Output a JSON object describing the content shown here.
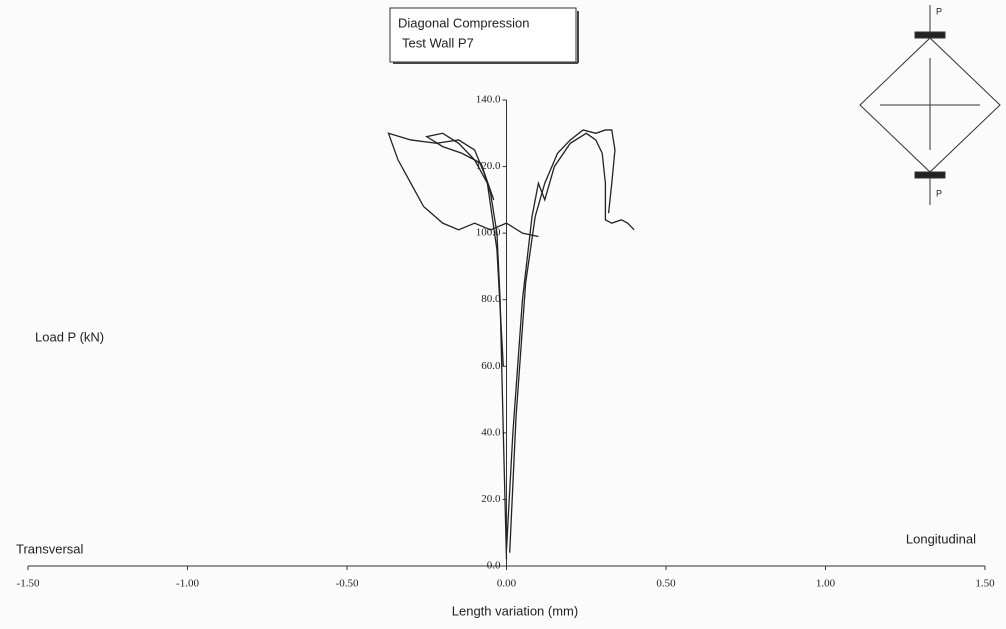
{
  "chart_data": {
    "type": "line",
    "title": "Diagonal Compression",
    "subtitle": "Test  Wall P7",
    "x_label": "Length variation (mm)",
    "y_label": "Load P (kN)",
    "annotations": [
      "Transversal",
      "Longitudinal"
    ],
    "diagram_labels": [
      "P",
      "P"
    ],
    "xlim": [
      -1.5,
      1.5
    ],
    "ylim": [
      0,
      140
    ],
    "xticks": [
      {
        "value": -1.5,
        "label": "-1.50"
      },
      {
        "value": -1.0,
        "label": "-1.00"
      },
      {
        "value": -0.5,
        "label": "-0.50"
      },
      {
        "value": 0,
        "label": "0.00"
      },
      {
        "value": 0.5,
        "label": "0.50"
      },
      {
        "value": 1.0,
        "label": "1.00"
      },
      {
        "value": 1.5,
        "label": "1.50"
      }
    ],
    "yticks": [
      {
        "value": 0,
        "label": "0.0"
      },
      {
        "value": 20,
        "label": "20.0"
      },
      {
        "value": 40,
        "label": "40.0"
      },
      {
        "value": 60,
        "label": "60.0"
      },
      {
        "value": 80,
        "label": "80.0"
      },
      {
        "value": 100,
        "label": "100.0"
      },
      {
        "value": 120,
        "label": "120.0"
      },
      {
        "value": 140,
        "label": "140.0"
      }
    ],
    "series": [
      {
        "color": "#222222",
        "x": [
          0.0,
          -0.01,
          -0.02,
          -0.03,
          -0.05,
          -0.07,
          -0.1,
          -0.15,
          -0.22,
          -0.3,
          -0.37,
          -0.34,
          -0.3,
          -0.26,
          -0.2,
          -0.15,
          -0.1,
          -0.05,
          0.0,
          0.05,
          0.1
        ],
        "values": [
          2,
          40,
          80,
          100,
          112,
          118,
          125,
          128,
          127,
          128,
          130,
          122,
          115,
          108,
          103,
          101,
          103,
          101,
          103,
          100,
          99
        ]
      },
      {
        "color": "#222222",
        "x": [
          -0.01,
          -0.03,
          -0.06,
          -0.1,
          -0.15,
          -0.2,
          -0.25,
          -0.2,
          -0.14,
          -0.08,
          -0.04
        ],
        "values": [
          60,
          95,
          115,
          122,
          127,
          130,
          129,
          126,
          124,
          121,
          110
        ]
      },
      {
        "color": "#222222",
        "x": [
          0.0,
          0.02,
          0.05,
          0.08,
          0.1,
          0.12,
          0.15,
          0.2,
          0.25,
          0.28,
          0.3,
          0.31,
          0.31,
          0.33,
          0.36,
          0.38,
          0.4,
          0.38
        ],
        "values": [
          5,
          40,
          80,
          105,
          115,
          110,
          120,
          127,
          130,
          128,
          124,
          115,
          104,
          103,
          104,
          103,
          101,
          103
        ]
      },
      {
        "color": "#222222",
        "x": [
          0.01,
          0.03,
          0.06,
          0.09,
          0.12,
          0.16,
          0.2,
          0.24,
          0.28,
          0.31,
          0.33,
          0.34,
          0.33,
          0.32
        ],
        "values": [
          4,
          45,
          85,
          105,
          115,
          124,
          128,
          131,
          130,
          131,
          131,
          125,
          115,
          106
        ]
      }
    ]
  }
}
